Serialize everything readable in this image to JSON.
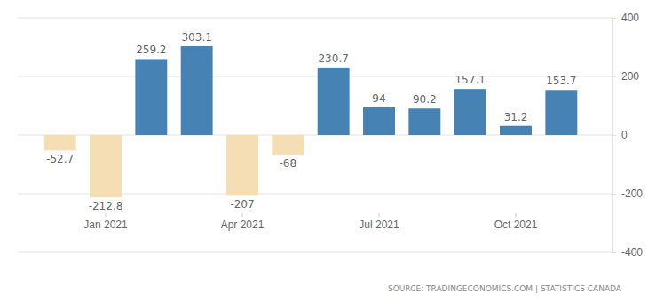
{
  "chart_data": {
    "type": "bar",
    "categories": [
      null,
      "Jan 2021",
      null,
      null,
      "Apr 2021",
      null,
      null,
      "Jul 2021",
      null,
      null,
      "Oct 2021",
      null
    ],
    "values": [
      -52.7,
      -212.8,
      259.2,
      303.1,
      -207,
      -68,
      230.7,
      94,
      90.2,
      157.1,
      31.2,
      153.7
    ],
    "colors": [
      "#f5deb3",
      "#f5deb3",
      "#4682b4",
      "#4682b4",
      "#f5deb3",
      "#f5deb3",
      "#4682b4",
      "#4682b4",
      "#4682b4",
      "#4682b4",
      "#4682b4",
      "#4682b4"
    ],
    "ylim": [
      -400,
      400
    ],
    "yticks": [
      -400,
      -200,
      0,
      200,
      400
    ],
    "grid": true,
    "data_labels": true,
    "source": "SOURCE: TRADINGECONOMICS.COM | STATISTICS CANADA"
  }
}
